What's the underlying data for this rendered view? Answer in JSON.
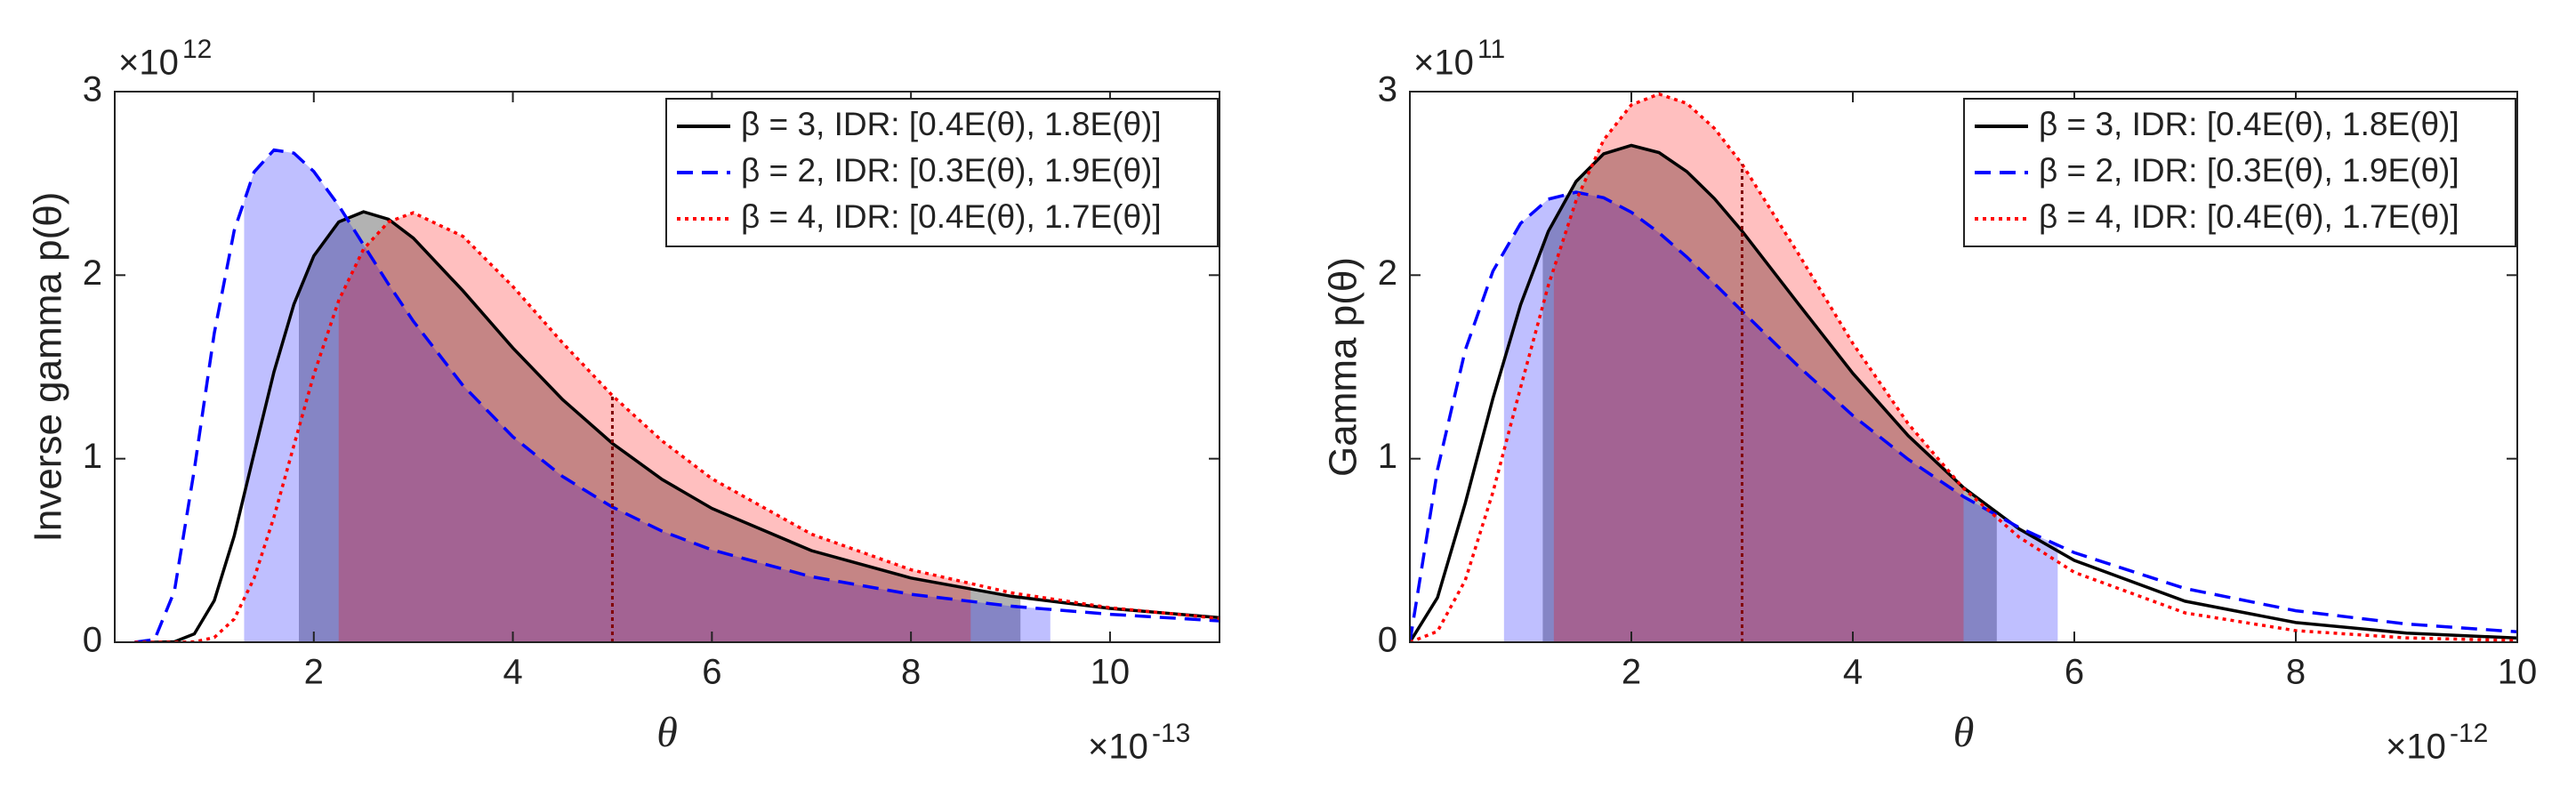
{
  "chart_data": [
    {
      "type": "line",
      "ylabel": "Inverse gamma p(θ)",
      "xlabel": "θ",
      "y_multiplier": {
        "base": "×10",
        "exponent": "12"
      },
      "x_multiplier": {
        "base": "×10",
        "exponent": "-13"
      },
      "xlim": [
        0,
        11.1
      ],
      "ylim": [
        0,
        3
      ],
      "xticks": [
        2,
        4,
        6,
        8,
        10
      ],
      "yticks": [
        0,
        1,
        2,
        3
      ],
      "legend": "upper right",
      "mean_line": 5,
      "x": [
        0.2,
        0.4,
        0.6,
        0.8,
        1.0,
        1.2,
        1.4,
        1.6,
        1.8,
        2.0,
        2.25,
        2.5,
        2.75,
        3,
        3.5,
        4,
        4.5,
        5,
        5.5,
        6,
        7,
        8,
        9,
        10,
        11.1
      ],
      "series": [
        {
          "name": "β = 3, IDR: [0.4E(θ), 1.8E(θ)]",
          "color": "#000000",
          "dash": "solid",
          "idr": [
            1.85,
            9.1
          ],
          "values": [
            0,
            0,
            0.0022,
            0.0455,
            0.227,
            0.579,
            1.028,
            1.473,
            1.841,
            2.105,
            2.29,
            2.345,
            2.305,
            2.202,
            1.914,
            1.603,
            1.322,
            1.083,
            0.887,
            0.729,
            0.499,
            0.35,
            0.251,
            0.184,
            0.1338
          ]
        },
        {
          "name": "β = 2, IDR: [0.3E(θ), 1.9E(θ)]",
          "color": "#0000ff",
          "dash": "dashed",
          "idr": [
            1.3,
            9.4
          ],
          "values": [
            0,
            0.0146,
            0.278,
            0.942,
            1.684,
            2.243,
            2.562,
            2.682,
            2.665,
            2.565,
            2.379,
            2.165,
            1.951,
            1.749,
            1.398,
            1.119,
            0.903,
            0.736,
            0.605,
            0.503,
            0.357,
            0.261,
            0.197,
            0.152,
            0.1165
          ]
        },
        {
          "name": "β = 4, IDR: [0.4E(θ), 1.7E(θ)]",
          "color": "#ff0000",
          "dash": "dotted",
          "idr": [
            2.25,
            8.6
          ],
          "values": [
            0,
            0,
            0,
            0.0019,
            0.0258,
            0.1265,
            0.348,
            0.682,
            1.072,
            1.458,
            1.862,
            2.142,
            2.29,
            2.34,
            2.211,
            1.938,
            1.631,
            1.344,
            1.097,
            0.891,
            0.589,
            0.395,
            0.27,
            0.188,
            0.1296
          ]
        }
      ]
    },
    {
      "type": "line",
      "ylabel": "Gamma p(θ)",
      "xlabel": "θ",
      "y_multiplier": {
        "base": "×10",
        "exponent": "11"
      },
      "x_multiplier": {
        "base": "×10",
        "exponent": "-12"
      },
      "xlim": [
        0,
        10
      ],
      "ylim": [
        0,
        3
      ],
      "xticks": [
        2,
        4,
        6,
        8,
        10
      ],
      "yticks": [
        0,
        1,
        2,
        3
      ],
      "legend": "upper right",
      "mean_line": 3,
      "x": [
        0,
        0.25,
        0.5,
        0.75,
        1,
        1.25,
        1.5,
        1.75,
        2,
        2.25,
        2.5,
        2.75,
        3,
        3.5,
        4,
        4.5,
        5,
        5.5,
        6,
        7,
        8,
        9,
        10
      ],
      "series": [
        {
          "name": "β = 3, IDR: [0.4E(θ), 1.8E(θ)]",
          "color": "#000000",
          "dash": "solid",
          "idr": [
            1.2,
            5.3
          ],
          "values": [
            0,
            0.2434,
            0.758,
            1.329,
            1.839,
            2.238,
            2.51,
            2.661,
            2.707,
            2.668,
            2.565,
            2.417,
            2.24,
            1.85,
            1.465,
            1.125,
            0.842,
            0.618,
            0.446,
            0.2234,
            0.1073,
            0.05,
            0.0227
          ]
        },
        {
          "name": "β = 2, IDR: [0.3E(θ), 1.9E(θ)]",
          "color": "#0000ff",
          "dash": "dashed",
          "idr": [
            0.85,
            5.85
          ],
          "values": [
            0,
            0.9405,
            1.592,
            2.022,
            2.282,
            2.414,
            2.452,
            2.422,
            2.343,
            2.231,
            2.099,
            1.954,
            1.804,
            1.508,
            1.235,
            0.996,
            0.793,
            0.625,
            0.488,
            0.2926,
            0.1717,
            0.0992,
            0.0566
          ]
        },
        {
          "name": "β = 4, IDR: [0.4E(θ), 1.7E(θ)]",
          "color": "#ff0000",
          "dash": "dotted",
          "idr": [
            1.3,
            5.0
          ],
          "values": [
            0,
            0.059,
            0.338,
            0.8175,
            1.388,
            1.943,
            2.406,
            2.737,
            2.928,
            2.987,
            2.936,
            2.8,
            2.605,
            2.124,
            1.628,
            1.19,
            0.838,
            0.573,
            0.381,
            0.1597,
            0.0628,
            0.0236,
            0.0085
          ]
        }
      ]
    }
  ]
}
